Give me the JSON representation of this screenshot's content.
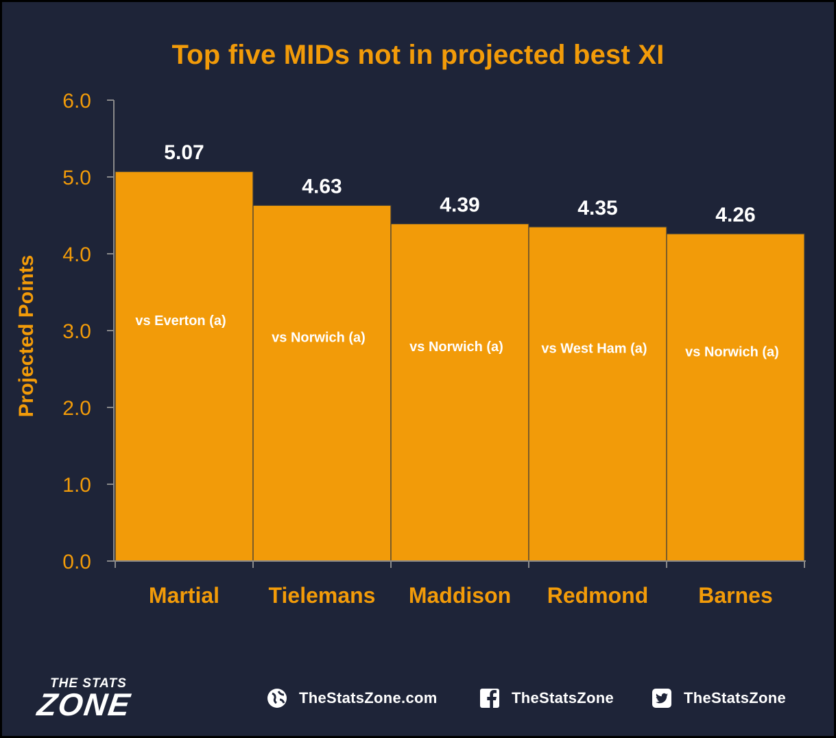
{
  "chart_data": {
    "type": "bar",
    "title": "Top five MIDs not in projected best XI",
    "ylabel": "Projected Points",
    "xlabel": "",
    "ylim": [
      0,
      6
    ],
    "yticks": [
      "0.0",
      "1.0",
      "2.0",
      "3.0",
      "4.0",
      "5.0",
      "6.0"
    ],
    "categories": [
      "Martial",
      "Tielemans",
      "Maddison",
      "Redmond",
      "Barnes"
    ],
    "values": [
      5.07,
      4.63,
      4.39,
      4.35,
      4.26
    ],
    "value_labels": [
      "5.07",
      "4.63",
      "4.39",
      "4.35",
      "4.26"
    ],
    "bar_annotations": [
      "vs Everton (a)",
      "vs Norwich (a)",
      "vs Norwich (a)",
      "vs West Ham (a)",
      "vs Norwich (a)"
    ],
    "bar_color": "#f29b09",
    "label_color": "#f29b09",
    "background": "#1e2438",
    "grid": false,
    "legend": "none"
  },
  "footer": {
    "logo_top": "THE STATS",
    "logo_main": "ZONE",
    "website": "TheStatsZone.com",
    "facebook": "TheStatsZone",
    "twitter": "TheStatsZone",
    "icons": [
      "globe-icon",
      "facebook-icon",
      "twitter-icon"
    ]
  }
}
